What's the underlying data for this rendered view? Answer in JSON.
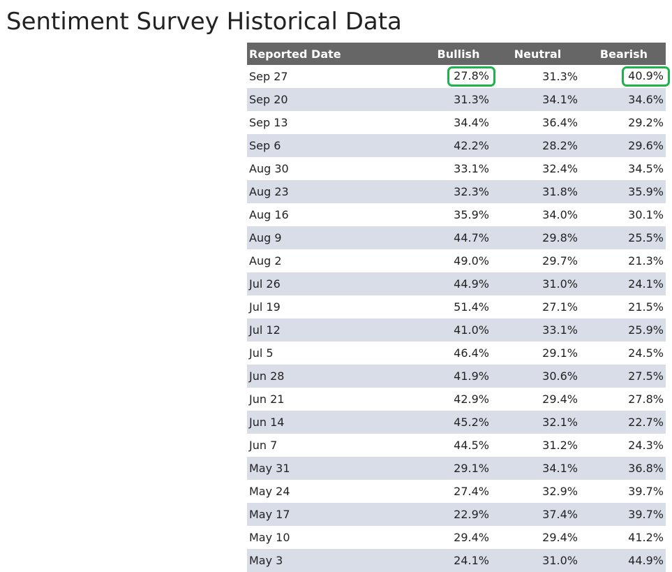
{
  "title": "Sentiment Survey Historical Data",
  "colors": {
    "header_bg": "#666666",
    "header_text": "#ffffff",
    "stripe": "#d8dde8",
    "highlight": "#1db34a"
  },
  "table": {
    "headers": [
      "Reported Date",
      "Bullish",
      "Neutral",
      "Bearish"
    ],
    "rows": [
      [
        "Sep 27",
        "27.8%",
        "31.3%",
        "40.9%"
      ],
      [
        "Sep 20",
        "31.3%",
        "34.1%",
        "34.6%"
      ],
      [
        "Sep 13",
        "34.4%",
        "36.4%",
        "29.2%"
      ],
      [
        "Sep 6",
        "42.2%",
        "28.2%",
        "29.6%"
      ],
      [
        "Aug 30",
        "33.1%",
        "32.4%",
        "34.5%"
      ],
      [
        "Aug 23",
        "32.3%",
        "31.8%",
        "35.9%"
      ],
      [
        "Aug 16",
        "35.9%",
        "34.0%",
        "30.1%"
      ],
      [
        "Aug 9",
        "44.7%",
        "29.8%",
        "25.5%"
      ],
      [
        "Aug 2",
        "49.0%",
        "29.7%",
        "21.3%"
      ],
      [
        "Jul 26",
        "44.9%",
        "31.0%",
        "24.1%"
      ],
      [
        "Jul 19",
        "51.4%",
        "27.1%",
        "21.5%"
      ],
      [
        "Jul 12",
        "41.0%",
        "33.1%",
        "25.9%"
      ],
      [
        "Jul 5",
        "46.4%",
        "29.1%",
        "24.5%"
      ],
      [
        "Jun 28",
        "41.9%",
        "30.6%",
        "27.5%"
      ],
      [
        "Jun 21",
        "42.9%",
        "29.4%",
        "27.8%"
      ],
      [
        "Jun 14",
        "45.2%",
        "32.1%",
        "22.7%"
      ],
      [
        "Jun 7",
        "44.5%",
        "31.2%",
        "24.3%"
      ],
      [
        "May 31",
        "29.1%",
        "34.1%",
        "36.8%"
      ],
      [
        "May 24",
        "27.4%",
        "32.9%",
        "39.7%"
      ],
      [
        "May 17",
        "22.9%",
        "37.4%",
        "39.7%"
      ],
      [
        "May 10",
        "29.4%",
        "29.4%",
        "41.2%"
      ],
      [
        "May 3",
        "24.1%",
        "31.0%",
        "44.9%"
      ]
    ]
  }
}
